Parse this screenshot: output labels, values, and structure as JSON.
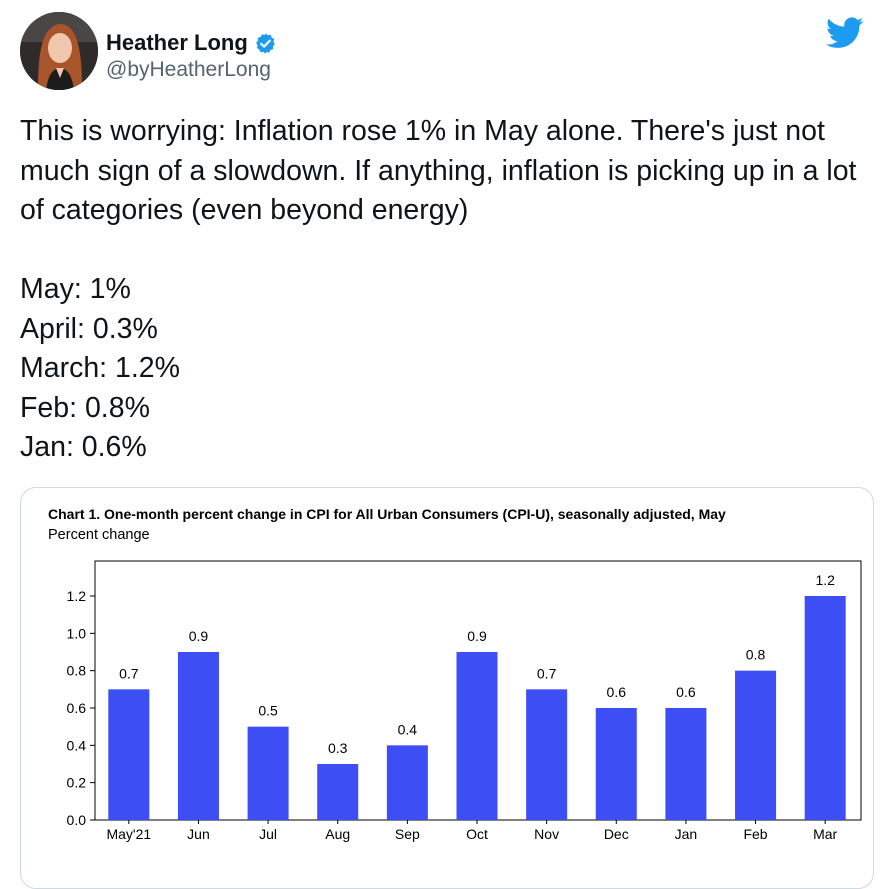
{
  "tweet": {
    "author": {
      "display_name": "Heather Long",
      "handle": "@byHeatherLong",
      "verified": true
    },
    "platform_icon": "twitter-bird-icon",
    "text": "This is worrying: Inflation rose 1% in May alone. There's just not much sign of a slowdown. If anything, inflation is picking up in a lot of categories (even beyond energy)\n\nMay: 1%\nApril: 0.3%\nMarch: 1.2%\nFeb: 0.8%\nJan: 0.6%"
  },
  "colors": {
    "accent": "#1d9bf0",
    "bar": "#3d4ef5",
    "text": "#0f1419",
    "muted": "#536471"
  },
  "chart_data": {
    "type": "bar",
    "title": "Chart 1. One-month percent change in CPI for All Urban Consumers (CPI-U), seasonally adjusted, May",
    "subtitle": "Percent change",
    "categories": [
      "May'21",
      "Jun",
      "Jul",
      "Aug",
      "Sep",
      "Oct",
      "Nov",
      "Dec",
      "Jan",
      "Feb",
      "Mar"
    ],
    "values": [
      0.7,
      0.9,
      0.5,
      0.3,
      0.4,
      0.9,
      0.7,
      0.6,
      0.6,
      0.8,
      1.2
    ],
    "value_labels": [
      "0.7",
      "0.9",
      "0.5",
      "0.3",
      "0.4",
      "0.9",
      "0.7",
      "0.6",
      "0.6",
      "0.8",
      "1.2"
    ],
    "y_ticks": [
      "0.0",
      "0.2",
      "0.4",
      "0.6",
      "0.8",
      "1.0",
      "1.2"
    ],
    "ylim": [
      0,
      1.2
    ],
    "grid": false,
    "legend": "none"
  }
}
